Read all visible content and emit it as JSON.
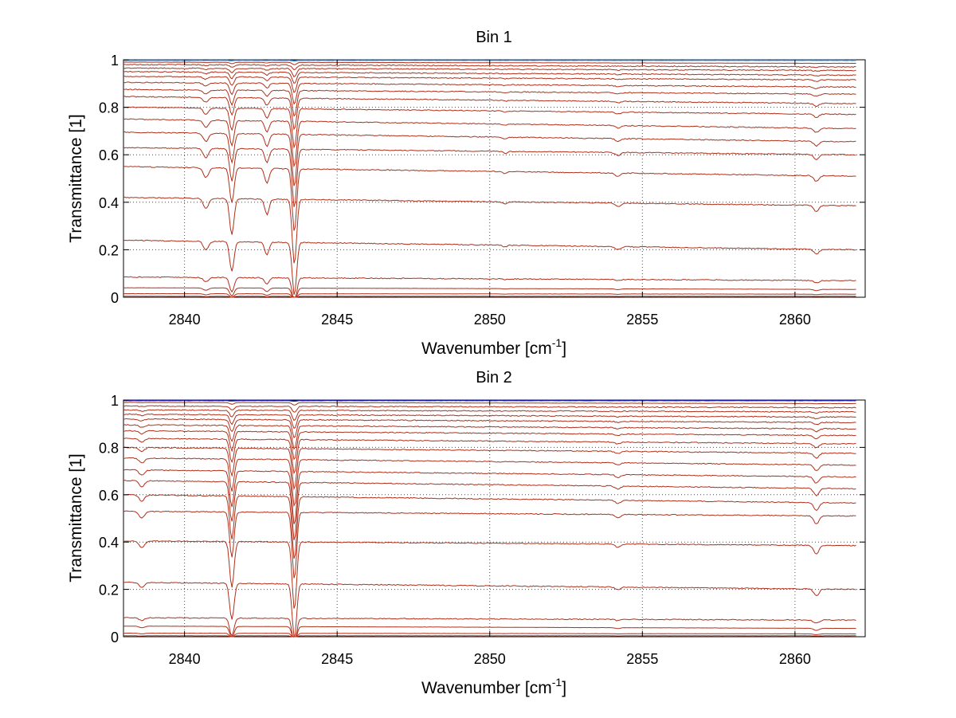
{
  "chart_data": [
    {
      "type": "line",
      "title": "Bin 1",
      "xlabel": "Wavenumber [cm",
      "xlabel_superscript": "-1",
      "xlabel_close": "]",
      "ylabel": "Transmittance [1]",
      "xlim": [
        2838,
        2862.3
      ],
      "ylim": [
        0,
        1
      ],
      "xticks": [
        2840,
        2845,
        2850,
        2855,
        2860
      ],
      "yticks": [
        0,
        0.2,
        0.4,
        0.6,
        0.8,
        1
      ],
      "ytick_labels": [
        "0",
        "0.2",
        "0.4",
        "0.6",
        "0.8",
        "1"
      ],
      "grid": true,
      "x_range": [
        2838,
        2862
      ],
      "top_line_color": "#1f77d0",
      "series_color": "#b0301a",
      "absorption_lines": [
        {
          "center": 2840.7,
          "width": 0.12,
          "strength": 0.06
        },
        {
          "center": 2841.55,
          "width": 0.1,
          "strength": 0.21
        },
        {
          "center": 2842.7,
          "width": 0.1,
          "strength": 0.09
        },
        {
          "center": 2843.6,
          "width": 0.1,
          "strength": 0.38
        },
        {
          "center": 2850.5,
          "width": 0.1,
          "strength": 0.012
        },
        {
          "center": 2854.2,
          "width": 0.12,
          "strength": 0.02
        },
        {
          "center": 2860.7,
          "width": 0.12,
          "strength": 0.035
        }
      ],
      "baselines": [
        {
          "start": 0.998,
          "end": 0.998
        },
        {
          "start": 0.99,
          "end": 0.985
        },
        {
          "start": 0.98,
          "end": 0.97
        },
        {
          "start": 0.965,
          "end": 0.955
        },
        {
          "start": 0.95,
          "end": 0.935
        },
        {
          "start": 0.93,
          "end": 0.915
        },
        {
          "start": 0.905,
          "end": 0.885
        },
        {
          "start": 0.875,
          "end": 0.855
        },
        {
          "start": 0.845,
          "end": 0.815
        },
        {
          "start": 0.8,
          "end": 0.77
        },
        {
          "start": 0.75,
          "end": 0.71
        },
        {
          "start": 0.695,
          "end": 0.655
        },
        {
          "start": 0.63,
          "end": 0.6
        },
        {
          "start": 0.55,
          "end": 0.51
        },
        {
          "start": 0.42,
          "end": 0.385
        },
        {
          "start": 0.24,
          "end": 0.2
        },
        {
          "start": 0.085,
          "end": 0.07
        },
        {
          "start": 0.04,
          "end": 0.033
        },
        {
          "start": 0.015,
          "end": 0.013
        },
        {
          "start": 0.004,
          "end": 0.004
        }
      ]
    },
    {
      "type": "line",
      "title": "Bin 2",
      "xlabel": "Wavenumber [cm",
      "xlabel_superscript": "-1",
      "xlabel_close": "]",
      "ylabel": "Transmittance [1]",
      "xlim": [
        2838,
        2862.3
      ],
      "ylim": [
        0,
        1
      ],
      "xticks": [
        2840,
        2845,
        2850,
        2855,
        2860
      ],
      "yticks": [
        0,
        0.2,
        0.4,
        0.6,
        0.8,
        1
      ],
      "ytick_labels": [
        "0",
        "0.2",
        "0.4",
        "0.6",
        "0.8",
        "1"
      ],
      "grid": true,
      "x_range": [
        2838,
        2862
      ],
      "top_line_color": "#1a1aa0",
      "series_color": "#b0301a",
      "absorption_lines": [
        {
          "center": 2838.6,
          "width": 0.12,
          "strength": 0.04
        },
        {
          "center": 2841.55,
          "width": 0.1,
          "strength": 0.27
        },
        {
          "center": 2843.6,
          "width": 0.1,
          "strength": 0.4
        },
        {
          "center": 2854.2,
          "width": 0.12,
          "strength": 0.02
        },
        {
          "center": 2860.7,
          "width": 0.12,
          "strength": 0.05
        }
      ],
      "baselines": [
        {
          "start": 0.998,
          "end": 0.998
        },
        {
          "start": 0.99,
          "end": 0.985
        },
        {
          "start": 0.975,
          "end": 0.968
        },
        {
          "start": 0.958,
          "end": 0.95
        },
        {
          "start": 0.94,
          "end": 0.928
        },
        {
          "start": 0.92,
          "end": 0.905
        },
        {
          "start": 0.895,
          "end": 0.878
        },
        {
          "start": 0.87,
          "end": 0.85
        },
        {
          "start": 0.838,
          "end": 0.815
        },
        {
          "start": 0.8,
          "end": 0.775
        },
        {
          "start": 0.755,
          "end": 0.725
        },
        {
          "start": 0.705,
          "end": 0.675
        },
        {
          "start": 0.66,
          "end": 0.625
        },
        {
          "start": 0.6,
          "end": 0.565
        },
        {
          "start": 0.53,
          "end": 0.51
        },
        {
          "start": 0.405,
          "end": 0.385
        },
        {
          "start": 0.23,
          "end": 0.2
        },
        {
          "start": 0.08,
          "end": 0.07
        },
        {
          "start": 0.045,
          "end": 0.035
        },
        {
          "start": 0.015,
          "end": 0.012
        },
        {
          "start": 0.004,
          "end": 0.004
        }
      ]
    }
  ]
}
